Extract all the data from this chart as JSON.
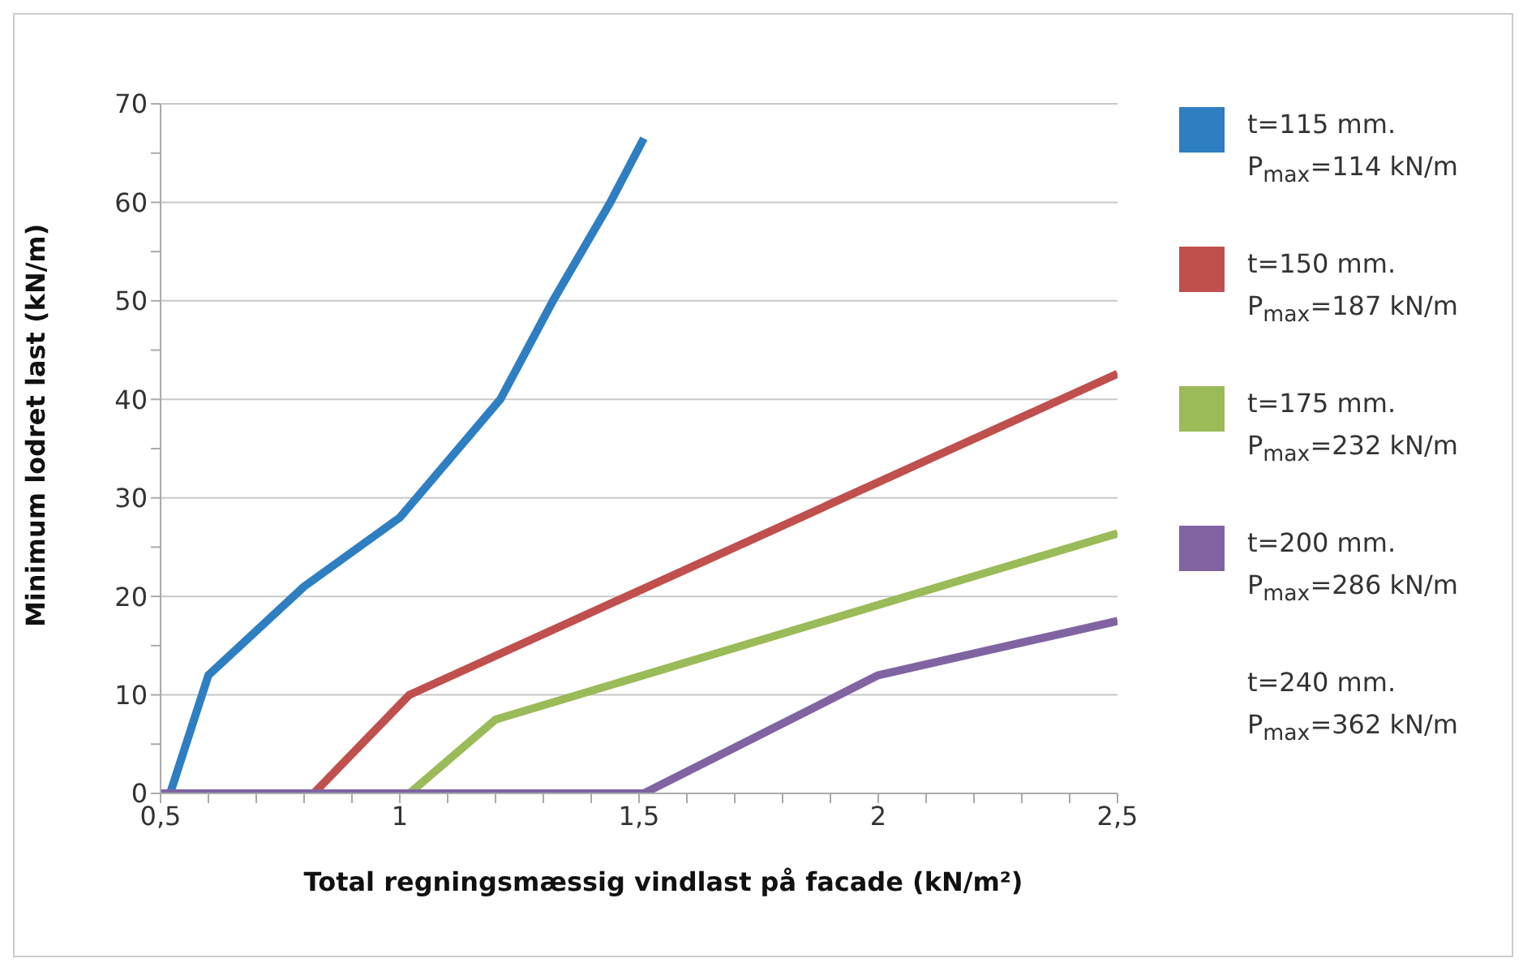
{
  "chart_data": {
    "type": "line",
    "xlabel": "Total regningsmæssig vindlast på facade (kN/m²)",
    "ylabel": "Minimum lodret last (kN/m)",
    "xlim": [
      0.5,
      2.5
    ],
    "xticks": [
      {
        "value": 0.5,
        "label": "0,5"
      },
      {
        "value": 0.6,
        "label": null
      },
      {
        "value": 0.7,
        "label": null
      },
      {
        "value": 0.8,
        "label": null
      },
      {
        "value": 0.9,
        "label": null
      },
      1,
      {
        "value": 1.1,
        "label": null
      },
      {
        "value": 1.2,
        "label": null
      },
      {
        "value": 1.3,
        "label": null
      },
      {
        "value": 1.4,
        "label": null
      },
      {
        "value": 1.5,
        "label": "1,5"
      },
      {
        "value": 1.6,
        "label": null
      },
      {
        "value": 1.7,
        "label": null
      },
      {
        "value": 1.8,
        "label": null
      },
      {
        "value": 1.9,
        "label": null
      },
      2,
      {
        "value": 2.1,
        "label": null
      },
      {
        "value": 2.2,
        "label": null
      },
      {
        "value": 2.3,
        "label": null
      },
      {
        "value": 2.4,
        "label": null
      },
      {
        "value": 2.5,
        "label": "2,5"
      }
    ],
    "ylim": [
      0,
      70
    ],
    "yticks": [
      0,
      {
        "value": 5,
        "label": null
      },
      10,
      {
        "value": 15,
        "label": null
      },
      20,
      {
        "value": 25,
        "label": null
      },
      30,
      {
        "value": 35,
        "label": null
      },
      40,
      {
        "value": 45,
        "label": null
      },
      50,
      {
        "value": 55,
        "label": null
      },
      60,
      {
        "value": 65,
        "label": null
      },
      70
    ],
    "grid": "y",
    "legend": "right",
    "series": [
      {
        "name": "t=115 mm.\nP$_{max}$=114 kN/m",
        "color": "#2e7ec2",
        "x": [
          0.52,
          0.6,
          0.8,
          1,
          1.21,
          1.32,
          1.44,
          1.51
        ],
        "values": [
          0,
          12,
          21,
          28,
          40,
          50,
          60,
          66.5
        ]
      },
      {
        "name": "t=150 mm.\nP$_{max}$=187 kN/m",
        "color": "#c0504d",
        "x": [
          0.82,
          1.02,
          2.5
        ],
        "values": [
          0,
          10,
          42.6
        ]
      },
      {
        "name": "t=175 mm.\nP$_{max}$=232 kN/m",
        "color": "#9bbb59",
        "x": [
          1.02,
          1.2,
          2.5
        ],
        "values": [
          0,
          7.5,
          26.4
        ]
      },
      {
        "name": "t=200 mm.\nP$_{max}$=286 kN/m",
        "color": "#8064a2",
        "x": [
          0.5,
          1.51,
          2,
          2.5
        ],
        "values": [
          0,
          0,
          12,
          17.5
        ]
      },
      {
        "name": "t=240 mm.\nP$_{max}$=362 kN/m"
      }
    ]
  }
}
